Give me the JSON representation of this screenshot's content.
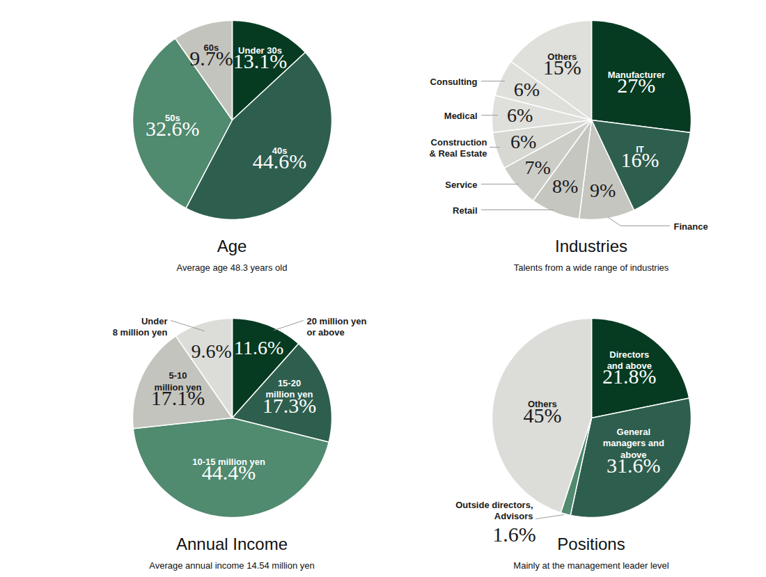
{
  "chart_data": [
    {
      "type": "pie",
      "title": "Age",
      "subtitle": "Average age 48.3 years old",
      "categories": [
        "Under 30s",
        "40s",
        "50s",
        "60s"
      ],
      "values": [
        13.1,
        44.6,
        32.6,
        9.7
      ],
      "value_labels": [
        "13.1%",
        "44.6%",
        "32.6%",
        "9.7%"
      ],
      "colors": [
        "#063b22",
        "#2e5e4e",
        "#508a6f",
        "#c4c4be"
      ],
      "data_labels": true
    },
    {
      "type": "pie",
      "title": "Industries",
      "subtitle": "Talents from a wide range of industries",
      "categories": [
        "Manufacturer",
        "IT",
        "Finance",
        "Retail",
        "Service",
        "Construction\n& Real Estate",
        "Medical",
        "Consulting",
        "Others"
      ],
      "values": [
        27,
        16,
        9,
        8,
        7,
        6,
        6,
        6,
        15
      ],
      "value_labels": [
        "27%",
        "16%",
        "9%",
        "8%",
        "7%",
        "6%",
        "6%",
        "6%",
        "15%"
      ],
      "colors": [
        "#063b22",
        "#2e5e4e",
        "#c6c6c0",
        "#c6c6c0",
        "#cdcdc8",
        "#d8d8d3",
        "#dfdfdb",
        "#dfdfdb",
        "#dfdfdb"
      ],
      "data_labels": true
    },
    {
      "type": "pie",
      "title": "Annual Income",
      "subtitle": "Average annual income 14.54 million yen",
      "categories": [
        "20 million yen\nor above",
        "15-20\nmillion yen",
        "10-15 million yen",
        "5-10\nmillion yen",
        "Under\n8 million yen"
      ],
      "values": [
        11.6,
        17.3,
        44.4,
        17.1,
        9.6
      ],
      "value_labels": [
        "11.6%",
        "17.3%",
        "44.4%",
        "17.1%",
        "9.6%"
      ],
      "colors": [
        "#063b22",
        "#2e5e4e",
        "#508a6f",
        "#c4c4be",
        "#dcdcd8"
      ],
      "data_labels": true
    },
    {
      "type": "pie",
      "title": "Positions",
      "subtitle": "Mainly at the management leader level",
      "categories": [
        "Directors\nand above",
        "General\nmanagers and\nabove",
        "Outside directors,\nAdvisors",
        "Others"
      ],
      "values": [
        21.8,
        31.6,
        1.6,
        45
      ],
      "value_labels": [
        "21.8%",
        "31.6%",
        "1.6%",
        "45%"
      ],
      "colors": [
        "#063b22",
        "#2e5e4e",
        "#508a6f",
        "#dcdcd8"
      ],
      "data_labels": true
    }
  ]
}
